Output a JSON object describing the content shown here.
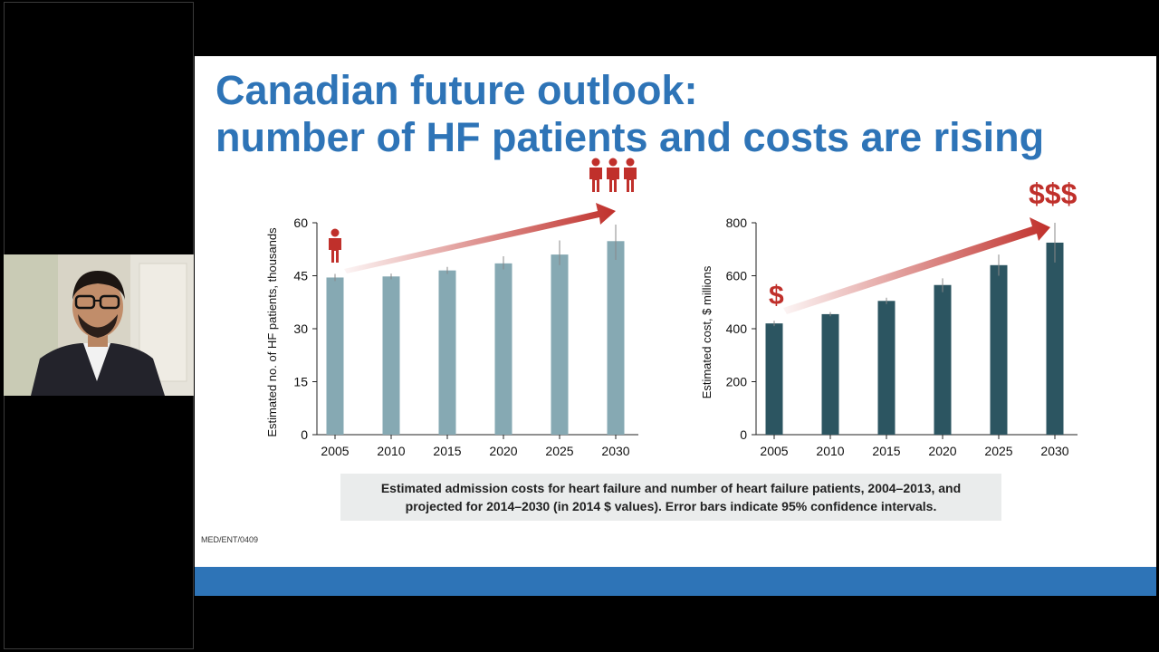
{
  "slide": {
    "title_line1": "Canadian future outlook:",
    "title_line2": "number of HF patients and costs are rising",
    "caption_line1": "Estimated admission costs for heart failure and number of heart failure patients, 2004–2013, and",
    "caption_line2": "projected for 2014–2030 (in 2014 $ values). Error bars indicate 95% confidence intervals.",
    "ref_code": "MED/ENT/0409",
    "dollar_single": "$",
    "dollar_triple": "$$$"
  },
  "colors": {
    "title": "#2e74b7",
    "footer_bar": "#2e74b7",
    "patients_bar": "#86a9b3",
    "cost_bar": "#2c5561",
    "accent_red": "#c0302b"
  },
  "icons": {
    "single_person": "person-icon",
    "three_people": "people-group-icon",
    "trend_arrow": "trend-arrow-icon"
  },
  "chart_data": [
    {
      "type": "bar",
      "categories": [
        "2005",
        "2010",
        "2015",
        "2020",
        "2025",
        "2030"
      ],
      "values": [
        44.5,
        44.8,
        46.5,
        48.5,
        51,
        54.8
      ],
      "error_low": [
        43.5,
        44.0,
        45.5,
        46.8,
        48,
        49.5
      ],
      "error_high": [
        45.5,
        45.6,
        47.5,
        50.5,
        55,
        59.5
      ],
      "ylabel": "Estimated no. of HF patients, thousands",
      "ylim": [
        0,
        60
      ],
      "yticks": [
        0,
        15,
        30,
        45,
        60
      ],
      "grid": false
    },
    {
      "type": "bar",
      "categories": [
        "2005",
        "2010",
        "2015",
        "2020",
        "2025",
        "2030"
      ],
      "values": [
        420,
        455,
        505,
        565,
        640,
        725
      ],
      "error_low": [
        410,
        447,
        493,
        538,
        600,
        650
      ],
      "error_high": [
        430,
        463,
        517,
        590,
        680,
        800
      ],
      "ylabel": "Estimated cost, $ millions",
      "ylim": [
        0,
        800
      ],
      "yticks": [
        0,
        200,
        400,
        600,
        800
      ],
      "grid": false
    }
  ]
}
